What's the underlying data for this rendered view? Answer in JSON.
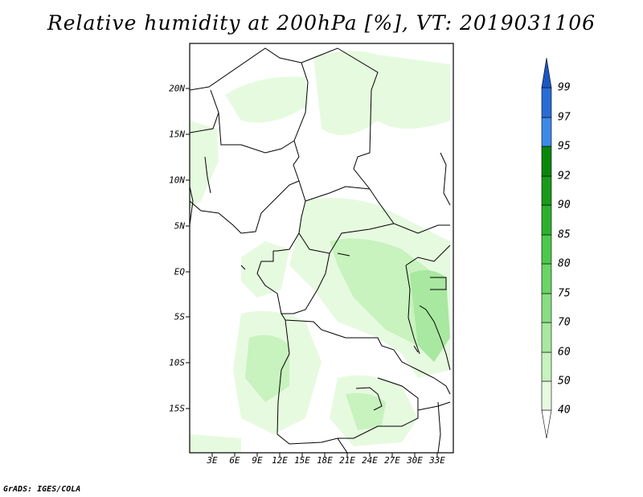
{
  "title": "Relative humidity at 200hPa [%], VT: 2019031106",
  "credit": "GrADS: IGES/COLA",
  "map": {
    "latitude_labels": [
      "20N",
      "15N",
      "10N",
      "5N",
      "EQ",
      "5S",
      "10S",
      "15S"
    ],
    "longitude_labels": [
      "3E",
      "6E",
      "9E",
      "12E",
      "15E",
      "18E",
      "21E",
      "24E",
      "27E",
      "30E",
      "33E"
    ]
  },
  "legend": {
    "levels": [
      "40",
      "50",
      "60",
      "70",
      "75",
      "80",
      "85",
      "90",
      "92",
      "95",
      "97",
      "99"
    ],
    "colors": [
      "#ffffff",
      "#e6fadf",
      "#c8f2be",
      "#a8e8a0",
      "#88de80",
      "#6ad466",
      "#4cc84c",
      "#2eb02e",
      "#1a9a1a",
      "#0a860a",
      "#3c8ae6",
      "#2a6cd6",
      "#1c56c2"
    ]
  }
}
